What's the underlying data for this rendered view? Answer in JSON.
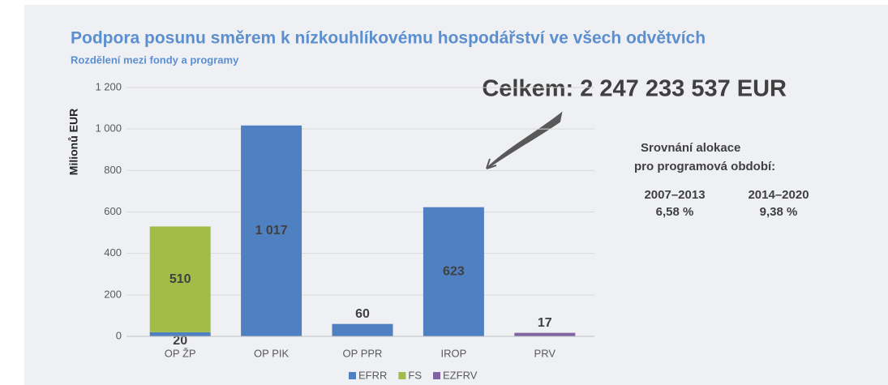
{
  "chart_data": {
    "type": "stacked-bar",
    "title": "Podpora posunu směrem k nízkouhlíkovému hospodářství ve všech odvětvích",
    "subtitle": "Rozdělení mezi fondy a programy",
    "y_label": "Milionů EUR",
    "annotation": "Celkem: 2 247 233 537 EUR",
    "comparison": {
      "heading": [
        "Srovnání alokace",
        "pro programová období:"
      ],
      "periods": [
        {
          "period": "2007–2013",
          "value": "6,58 %"
        },
        {
          "period": "2014–2020",
          "value": "9,38 %"
        }
      ]
    },
    "categories": [
      "OP ŽP",
      "OP PIK",
      "OP PPR",
      "IROP",
      "PRV"
    ],
    "series": [
      {
        "name": "EFRR",
        "color": "#4f81c2",
        "values": [
          20,
          1017,
          60,
          623,
          null
        ],
        "value_labels": [
          "20",
          "1 017",
          "60",
          "623",
          null
        ]
      },
      {
        "name": "FS",
        "color": "#a2bc4a",
        "values": [
          510,
          null,
          null,
          null,
          null
        ],
        "value_labels": [
          "510",
          null,
          null,
          null,
          null
        ]
      },
      {
        "name": "EZFRV",
        "color": "#8064a2",
        "values": [
          null,
          null,
          null,
          null,
          17
        ],
        "value_labels": [
          null,
          null,
          null,
          null,
          "17"
        ]
      }
    ],
    "ylim": [
      0,
      1200
    ],
    "yticks": [
      0,
      200,
      400,
      600,
      800,
      {
        "value": 1000,
        "label": "1 000"
      },
      {
        "value": 1200,
        "label": "1 200"
      }
    ],
    "grid": true,
    "legend": "bottom"
  }
}
